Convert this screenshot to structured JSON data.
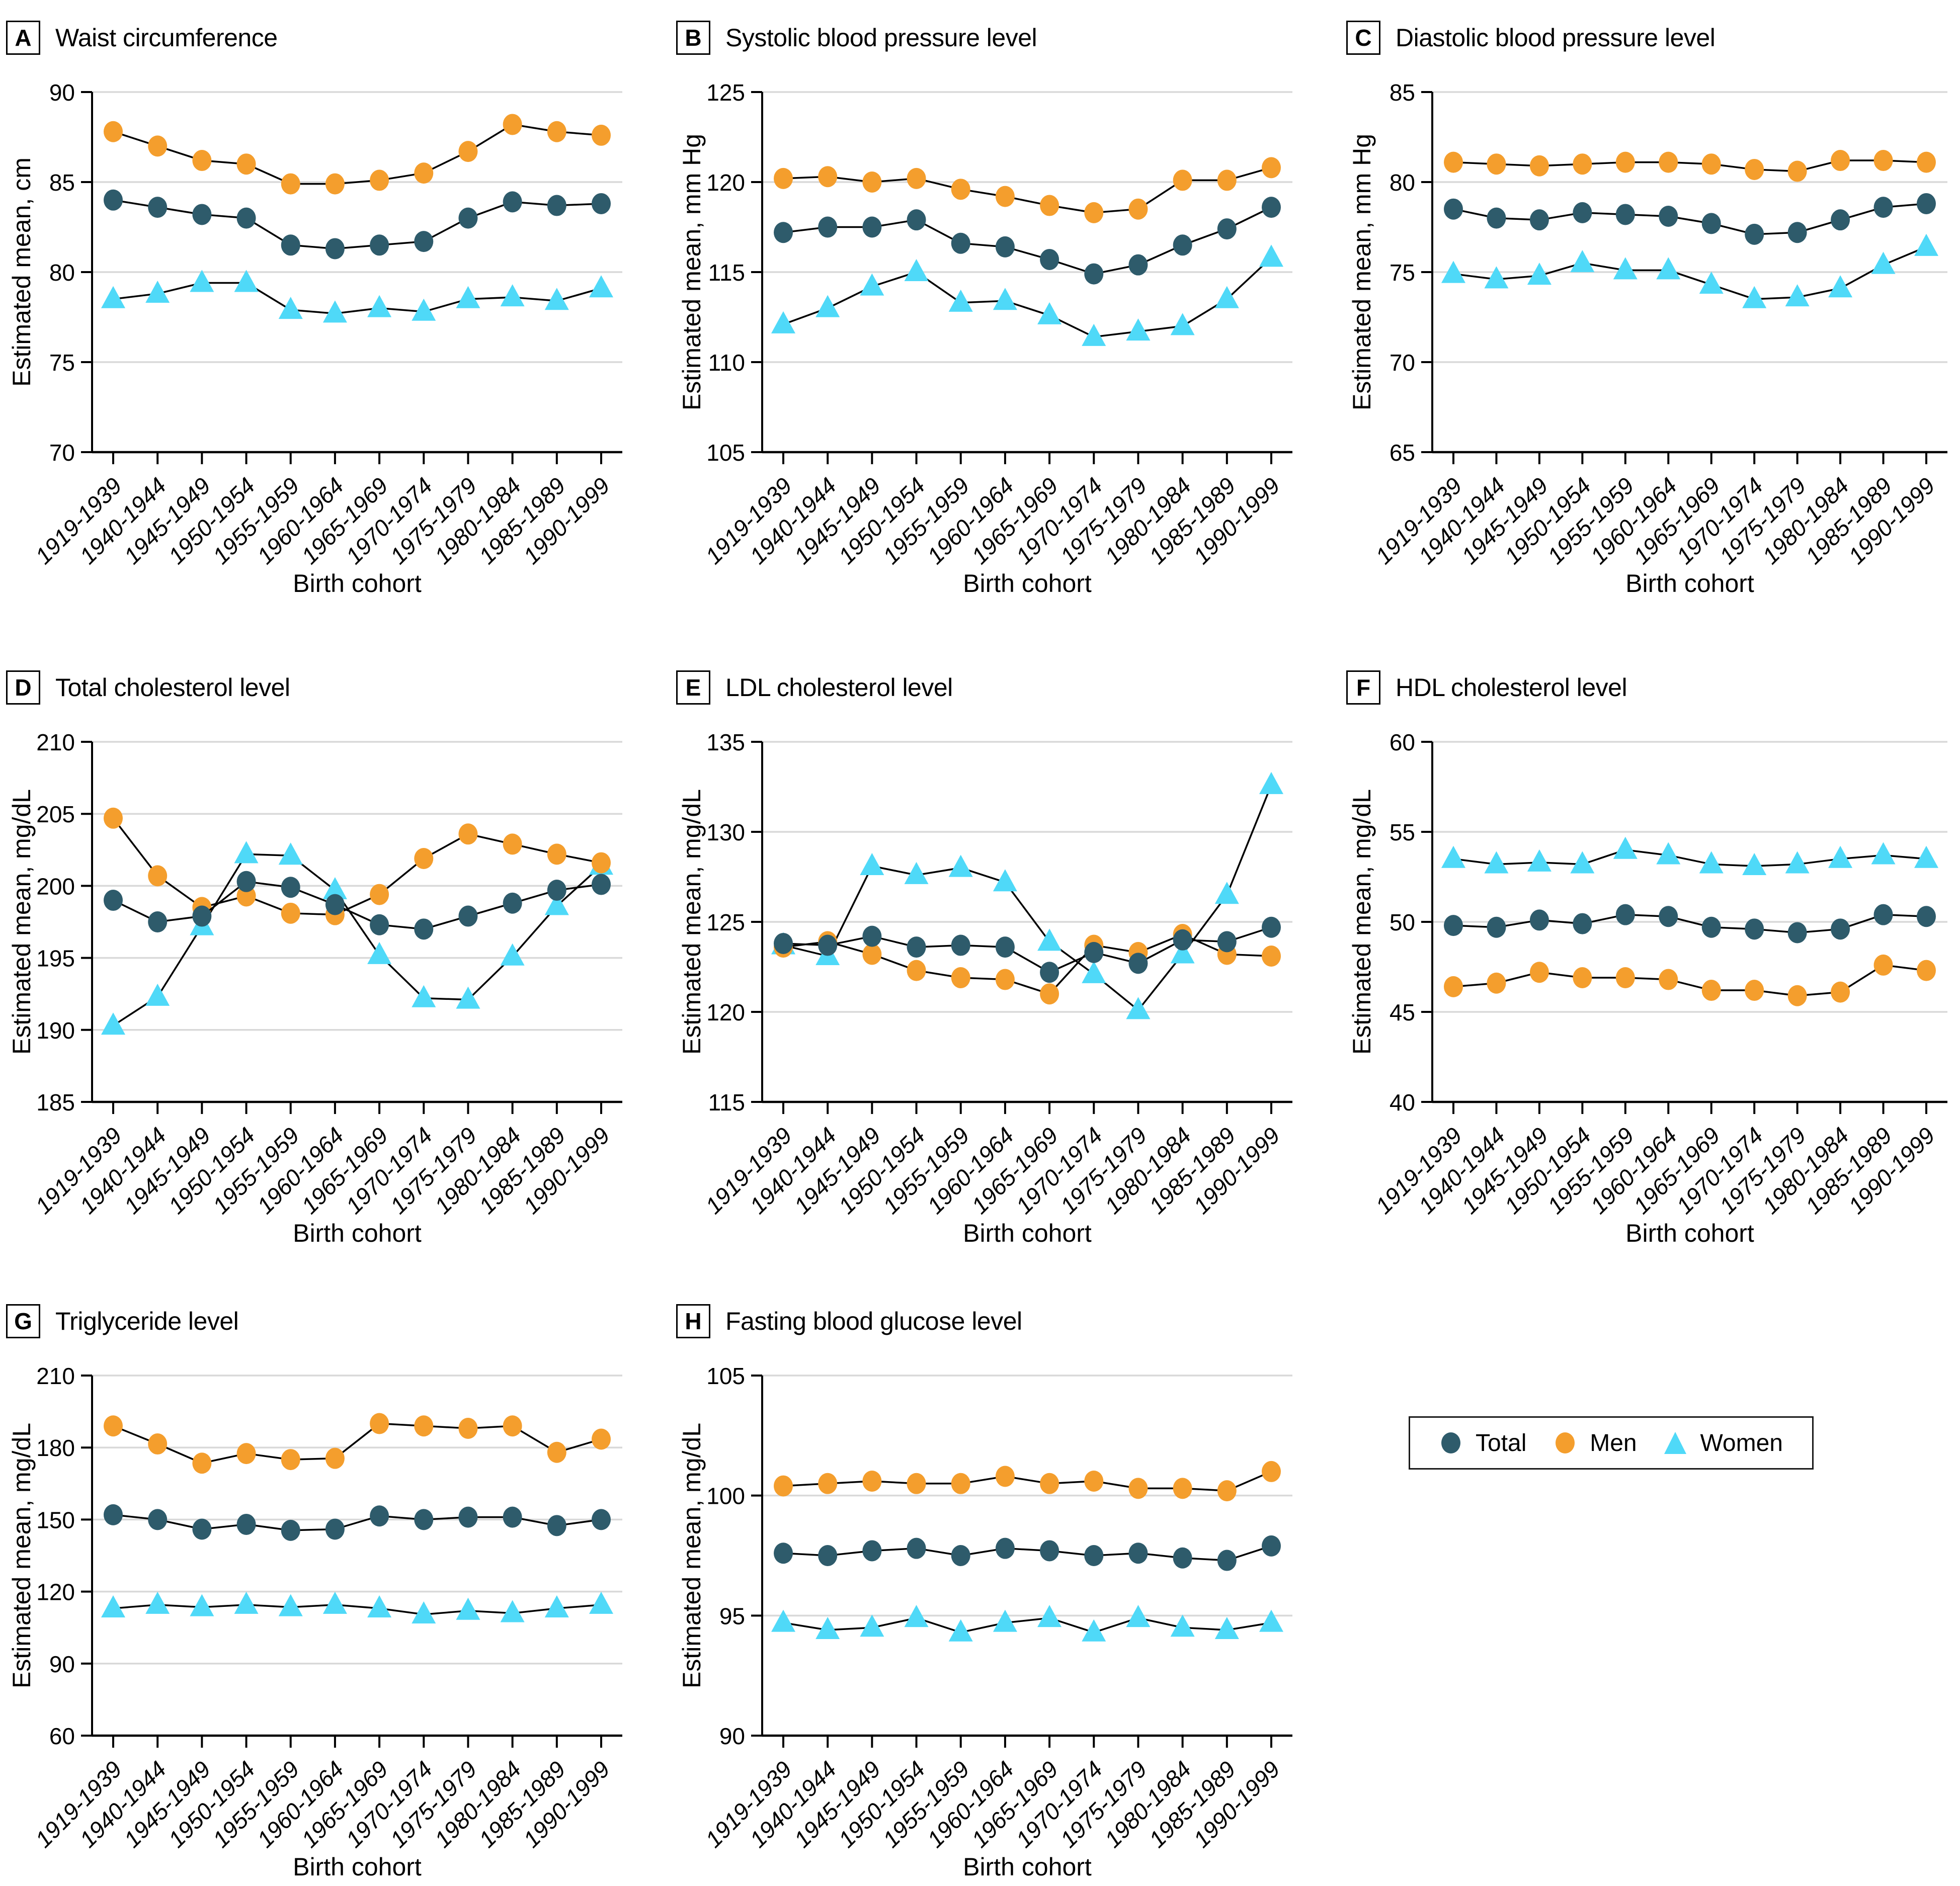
{
  "colors": {
    "total": "#2E5B6B",
    "men": "#F49E2D",
    "women": "#4FD9F8",
    "line": "#000000",
    "grid": "#D9D9D9",
    "text": "#000000"
  },
  "legend": {
    "items": [
      {
        "label": "Total",
        "series": "total",
        "marker": "circle"
      },
      {
        "label": "Men",
        "series": "men",
        "marker": "circle"
      },
      {
        "label": "Women",
        "series": "women",
        "marker": "triangle"
      }
    ]
  },
  "chart_data": [
    {
      "type": "line",
      "panel_letter": "A",
      "title": "Waist circumference",
      "xlabel": "Birth cohort",
      "ylabel": "Estimated mean, cm",
      "ylim": [
        70,
        90
      ],
      "ytick_step": 5,
      "grid": true,
      "categories": [
        "1919-1939",
        "1940-1944",
        "1945-1949",
        "1950-1954",
        "1955-1959",
        "1960-1964",
        "1965-1969",
        "1970-1974",
        "1975-1979",
        "1980-1984",
        "1985-1989",
        "1990-1999"
      ],
      "series": [
        {
          "name": "Total",
          "key": "total",
          "marker": "circle",
          "values": [
            84.0,
            83.6,
            83.2,
            83.0,
            81.5,
            81.3,
            81.5,
            81.7,
            83.0,
            83.9,
            83.7,
            83.8
          ]
        },
        {
          "name": "Men",
          "key": "men",
          "marker": "circle",
          "values": [
            87.8,
            87.0,
            86.2,
            86.0,
            84.9,
            84.9,
            85.1,
            85.5,
            86.7,
            88.2,
            87.8,
            87.6
          ]
        },
        {
          "name": "Women",
          "key": "women",
          "marker": "triangle",
          "values": [
            78.5,
            78.8,
            79.4,
            79.4,
            77.9,
            77.7,
            78.0,
            77.8,
            78.5,
            78.6,
            78.4,
            79.1
          ]
        }
      ]
    },
    {
      "type": "line",
      "panel_letter": "B",
      "title": "Systolic blood pressure level",
      "xlabel": "Birth cohort",
      "ylabel": "Estimated mean, mm Hg",
      "ylim": [
        105,
        125
      ],
      "ytick_step": 5,
      "grid": true,
      "categories": [
        "1919-1939",
        "1940-1944",
        "1945-1949",
        "1950-1954",
        "1955-1959",
        "1960-1964",
        "1965-1969",
        "1970-1974",
        "1975-1979",
        "1980-1984",
        "1985-1989",
        "1990-1999"
      ],
      "series": [
        {
          "name": "Total",
          "key": "total",
          "marker": "circle",
          "values": [
            117.2,
            117.5,
            117.5,
            117.9,
            116.6,
            116.4,
            115.7,
            114.9,
            115.4,
            116.5,
            117.4,
            118.6
          ]
        },
        {
          "name": "Men",
          "key": "men",
          "marker": "circle",
          "values": [
            120.2,
            120.3,
            120.0,
            120.2,
            119.6,
            119.2,
            118.7,
            118.3,
            118.5,
            120.1,
            120.1,
            120.8
          ]
        },
        {
          "name": "Women",
          "key": "women",
          "marker": "triangle",
          "values": [
            112.1,
            113.0,
            114.2,
            115.0,
            113.3,
            113.4,
            112.6,
            111.4,
            111.7,
            112.0,
            113.5,
            115.8
          ]
        }
      ]
    },
    {
      "type": "line",
      "panel_letter": "C",
      "title": "Diastolic blood pressure level",
      "xlabel": "Birth cohort",
      "ylabel": "Estimated mean, mm Hg",
      "ylim": [
        65,
        85
      ],
      "ytick_step": 5,
      "grid": true,
      "categories": [
        "1919-1939",
        "1940-1944",
        "1945-1949",
        "1950-1954",
        "1955-1959",
        "1960-1964",
        "1965-1969",
        "1970-1974",
        "1975-1979",
        "1980-1984",
        "1985-1989",
        "1990-1999"
      ],
      "series": [
        {
          "name": "Total",
          "key": "total",
          "marker": "circle",
          "values": [
            78.5,
            78.0,
            77.9,
            78.3,
            78.2,
            78.1,
            77.7,
            77.1,
            77.2,
            77.9,
            78.6,
            78.8
          ]
        },
        {
          "name": "Men",
          "key": "men",
          "marker": "circle",
          "values": [
            81.1,
            81.0,
            80.9,
            81.0,
            81.1,
            81.1,
            81.0,
            80.7,
            80.6,
            81.2,
            81.2,
            81.1
          ]
        },
        {
          "name": "Women",
          "key": "women",
          "marker": "triangle",
          "values": [
            74.9,
            74.6,
            74.8,
            75.5,
            75.1,
            75.1,
            74.3,
            73.5,
            73.6,
            74.1,
            75.4,
            76.4
          ]
        }
      ]
    },
    {
      "type": "line",
      "panel_letter": "D",
      "title": "Total cholesterol level",
      "xlabel": "Birth cohort",
      "ylabel": "Estimated mean, mg/dL",
      "ylim": [
        185,
        210
      ],
      "ytick_step": 5,
      "grid": true,
      "categories": [
        "1919-1939",
        "1940-1944",
        "1945-1949",
        "1950-1954",
        "1955-1959",
        "1960-1964",
        "1965-1969",
        "1970-1974",
        "1975-1979",
        "1980-1984",
        "1985-1989",
        "1990-1999"
      ],
      "series": [
        {
          "name": "Total",
          "key": "total",
          "marker": "circle",
          "values": [
            199.0,
            197.5,
            197.9,
            200.3,
            199.9,
            198.7,
            197.3,
            197.0,
            197.9,
            198.8,
            199.7,
            200.1
          ]
        },
        {
          "name": "Men",
          "key": "men",
          "marker": "circle",
          "values": [
            204.7,
            200.7,
            198.5,
            199.3,
            198.1,
            198.0,
            199.4,
            201.9,
            203.6,
            202.9,
            202.2,
            201.6
          ]
        },
        {
          "name": "Women",
          "key": "women",
          "marker": "triangle",
          "values": [
            190.3,
            192.3,
            197.2,
            202.2,
            202.1,
            199.7,
            195.2,
            192.2,
            192.1,
            195.1,
            198.6,
            201.4
          ]
        }
      ]
    },
    {
      "type": "line",
      "panel_letter": "E",
      "title": "LDL cholesterol level",
      "xlabel": "Birth cohort",
      "ylabel": "Estimated mean, mg/dL",
      "ylim": [
        115,
        135
      ],
      "ytick_step": 5,
      "grid": true,
      "categories": [
        "1919-1939",
        "1940-1944",
        "1945-1949",
        "1950-1954",
        "1955-1959",
        "1960-1964",
        "1965-1969",
        "1970-1974",
        "1975-1979",
        "1980-1984",
        "1985-1989",
        "1990-1999"
      ],
      "series": [
        {
          "name": "Total",
          "key": "total",
          "marker": "circle",
          "values": [
            123.8,
            123.7,
            124.2,
            123.6,
            123.7,
            123.6,
            122.2,
            123.3,
            122.7,
            124.0,
            123.9,
            124.7
          ]
        },
        {
          "name": "Men",
          "key": "men",
          "marker": "circle",
          "values": [
            123.6,
            123.9,
            123.2,
            122.3,
            121.9,
            121.8,
            121.0,
            123.7,
            123.3,
            124.3,
            123.2,
            123.1
          ]
        },
        {
          "name": "Women",
          "key": "women",
          "marker": "triangle",
          "values": [
            123.7,
            123.1,
            128.1,
            127.6,
            128.0,
            127.2,
            123.9,
            122.1,
            120.1,
            123.2,
            126.5,
            132.6
          ]
        }
      ]
    },
    {
      "type": "line",
      "panel_letter": "F",
      "title": "HDL cholesterol level",
      "xlabel": "Birth cohort",
      "ylabel": "Estimated mean, mg/dL",
      "ylim": [
        40,
        60
      ],
      "ytick_step": 5,
      "grid": true,
      "categories": [
        "1919-1939",
        "1940-1944",
        "1945-1949",
        "1950-1954",
        "1955-1959",
        "1960-1964",
        "1965-1969",
        "1970-1974",
        "1975-1979",
        "1980-1984",
        "1985-1989",
        "1990-1999"
      ],
      "series": [
        {
          "name": "Total",
          "key": "total",
          "marker": "circle",
          "values": [
            49.8,
            49.7,
            50.1,
            49.9,
            50.4,
            50.3,
            49.7,
            49.6,
            49.4,
            49.6,
            50.4,
            50.3
          ]
        },
        {
          "name": "Men",
          "key": "men",
          "marker": "circle",
          "values": [
            46.4,
            46.6,
            47.2,
            46.9,
            46.9,
            46.8,
            46.2,
            46.2,
            45.9,
            46.1,
            47.6,
            47.3
          ]
        },
        {
          "name": "Women",
          "key": "women",
          "marker": "triangle",
          "values": [
            53.5,
            53.2,
            53.3,
            53.2,
            54.0,
            53.7,
            53.2,
            53.1,
            53.2,
            53.5,
            53.7,
            53.5
          ]
        }
      ]
    },
    {
      "type": "line",
      "panel_letter": "G",
      "title": "Triglyceride level",
      "xlabel": "Birth cohort",
      "ylabel": "Estimated mean, mg/dL",
      "ylim": [
        60,
        210
      ],
      "ytick_step": 30,
      "grid": true,
      "categories": [
        "1919-1939",
        "1940-1944",
        "1945-1949",
        "1950-1954",
        "1955-1959",
        "1960-1964",
        "1965-1969",
        "1970-1974",
        "1975-1979",
        "1980-1984",
        "1985-1989",
        "1990-1999"
      ],
      "series": [
        {
          "name": "Total",
          "key": "total",
          "marker": "circle",
          "values": [
            152,
            150,
            146,
            148,
            145.5,
            146,
            151.5,
            150,
            151,
            151,
            147.5,
            150
          ]
        },
        {
          "name": "Men",
          "key": "men",
          "marker": "circle",
          "values": [
            189,
            181.5,
            173.5,
            177.5,
            175,
            175.5,
            190,
            189,
            188,
            189,
            178,
            183.5
          ]
        },
        {
          "name": "Women",
          "key": "women",
          "marker": "triangle",
          "values": [
            113,
            114.5,
            113.5,
            114.5,
            113.5,
            114.5,
            113,
            110.5,
            112,
            111,
            113,
            114.5
          ]
        }
      ]
    },
    {
      "type": "line",
      "panel_letter": "H",
      "title": "Fasting blood glucose level",
      "xlabel": "Birth cohort",
      "ylabel": "Estimated mean, mg/dL",
      "ylim": [
        90,
        105
      ],
      "ytick_step": 5,
      "grid": true,
      "categories": [
        "1919-1939",
        "1940-1944",
        "1945-1949",
        "1950-1954",
        "1955-1959",
        "1960-1964",
        "1965-1969",
        "1970-1974",
        "1975-1979",
        "1980-1984",
        "1985-1989",
        "1990-1999"
      ],
      "series": [
        {
          "name": "Total",
          "key": "total",
          "marker": "circle",
          "values": [
            97.6,
            97.5,
            97.7,
            97.8,
            97.5,
            97.8,
            97.7,
            97.5,
            97.6,
            97.4,
            97.3,
            97.9
          ]
        },
        {
          "name": "Men",
          "key": "men",
          "marker": "circle",
          "values": [
            100.4,
            100.5,
            100.6,
            100.5,
            100.5,
            100.8,
            100.5,
            100.6,
            100.3,
            100.3,
            100.2,
            101.0
          ]
        },
        {
          "name": "Women",
          "key": "women",
          "marker": "triangle",
          "values": [
            94.7,
            94.4,
            94.5,
            94.9,
            94.3,
            94.7,
            94.9,
            94.3,
            94.9,
            94.5,
            94.4,
            94.7
          ]
        }
      ]
    }
  ]
}
